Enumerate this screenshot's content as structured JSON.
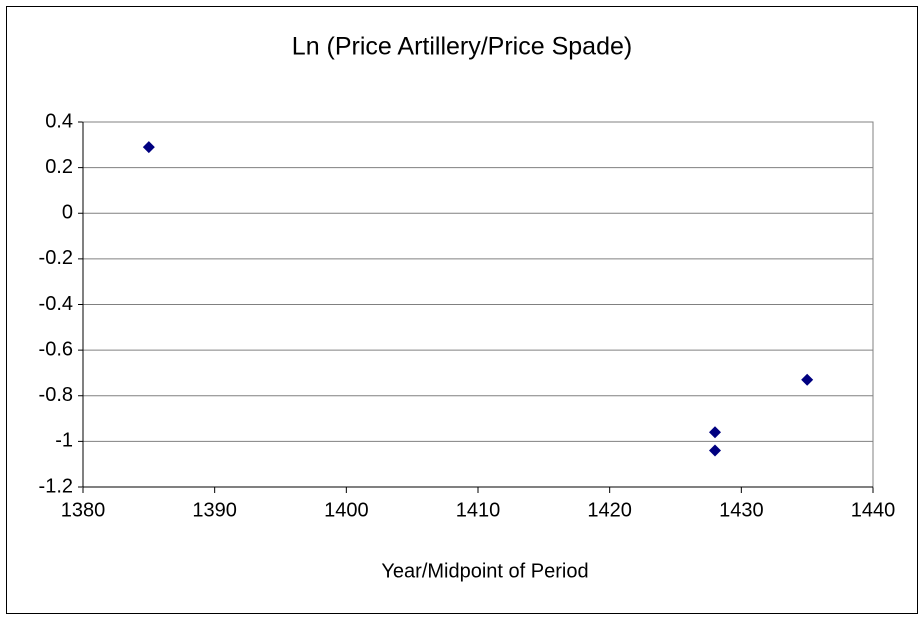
{
  "chart_data": {
    "type": "scatter",
    "title": "Ln (Price Artillery/Price Spade)",
    "x_label": "Year/Midpoint of Period",
    "series": [
      {
        "color": "#000080",
        "x": [
          1385,
          1428,
          1428,
          1435
        ],
        "values": [
          0.29,
          -0.96,
          -1.04,
          -0.73
        ]
      }
    ],
    "xlim": [
      1380,
      1440
    ],
    "xticks": [
      1380,
      1390,
      1400,
      1410,
      1420,
      1430,
      1440
    ],
    "ylim": [
      -1.2,
      0.4
    ],
    "yticks": [
      0.4,
      0.2,
      0,
      -0.2,
      -0.4,
      -0.6,
      -0.8,
      -1,
      -1.2
    ],
    "grid": true
  }
}
